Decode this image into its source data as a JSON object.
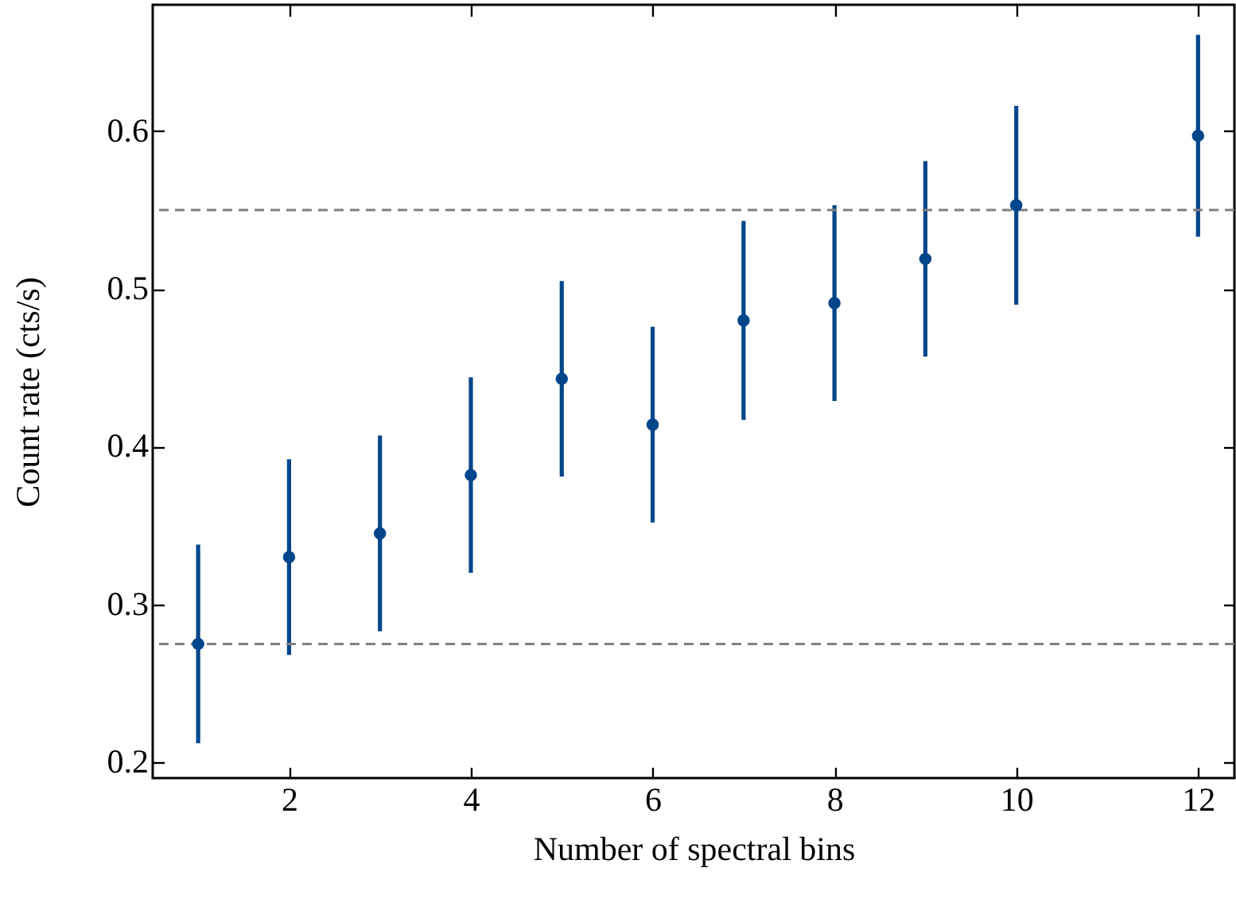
{
  "chart_data": {
    "type": "scatter",
    "xlabel": "Number of spectral bins",
    "ylabel": "Count rate (cts/s)",
    "x": [
      1,
      2,
      3,
      4,
      5,
      6,
      7,
      8,
      9,
      10,
      12
    ],
    "values": [
      0.275,
      0.33,
      0.345,
      0.382,
      0.443,
      0.414,
      0.48,
      0.491,
      0.519,
      0.553,
      0.597
    ],
    "errors": [
      0.063,
      0.062,
      0.062,
      0.062,
      0.062,
      0.062,
      0.063,
      0.062,
      0.062,
      0.063,
      0.064
    ],
    "color": "#00468b",
    "marker": "circle",
    "xlim": [
      0.5,
      12.4
    ],
    "xticks": [
      2,
      4,
      6,
      8,
      10,
      12
    ],
    "ylim": [
      0.19,
      0.68
    ],
    "yticks": [
      0.2,
      0.3,
      0.4,
      0.5,
      0.6
    ],
    "ref_lines": [
      {
        "axis": "y",
        "value": 0.55,
        "color": "#808080",
        "line_style": "dashed"
      },
      {
        "axis": "y",
        "value": 0.275,
        "color": "#808080",
        "line_style": "dashed"
      }
    ]
  }
}
